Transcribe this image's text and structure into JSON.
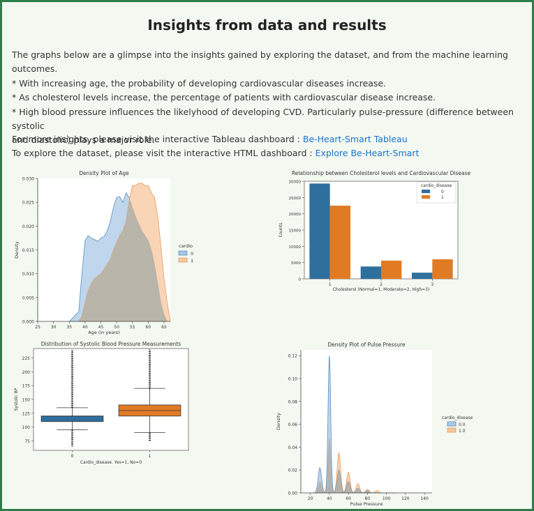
{
  "page": {
    "title": "Insights from data and results",
    "intro": "The graphs below are a glimpse into the insights gained by exploring the dataset, and from the machine learning outcomes.",
    "bullets": [
      "* With increasing age, the probability of developing cardiovascular diseases increase.",
      "* As cholesterol levels increase, the percentage of patients with cardiovascular disease increase.",
      "* High blood pressure influences the likelyhood of developing CVD. Particularly pulse-pressure (difference between systolic",
      "and diastolic) plays a major role."
    ],
    "tableau_prefix": "For more insights, please visit the interactive Tableau dashboard : ",
    "tableau_link": "Be-Heart-Smart Tableau",
    "html_prefix": "To explore the dataset, please visit the interactive HTML dashboard : ",
    "html_link": "Explore Be-Heart-Smart"
  },
  "colors": {
    "blue": "#2f6f9e",
    "orange": "#e07b24",
    "blue_fill": "#a9c8e6",
    "orange_fill": "#f7c79e",
    "overlap": "#b5b2aa",
    "frame": "#2e7d4a"
  },
  "chart_data": [
    {
      "type": "area",
      "title": "Density Plot of Age",
      "xlabel": "Age (in years)",
      "ylabel": "Density",
      "xlim": [
        25,
        67
      ],
      "ylim": [
        0,
        0.03
      ],
      "xticks": [
        25,
        30,
        35,
        40,
        45,
        50,
        55,
        60,
        65
      ],
      "yticks": [
        "0.000",
        "0.005",
        "0.010",
        "0.015",
        "0.020",
        "0.025",
        "0.030"
      ],
      "legend_title": "cardio",
      "legend_position": "right",
      "series": [
        {
          "name": "0",
          "x": [
            35,
            38,
            39,
            40,
            41,
            42,
            43,
            44,
            45,
            46,
            47,
            48,
            49,
            50,
            51,
            52,
            53,
            54,
            55,
            56,
            57,
            58,
            59,
            60,
            61,
            62,
            63,
            64,
            65,
            66
          ],
          "y": [
            0,
            0.002,
            0.01,
            0.017,
            0.018,
            0.0175,
            0.0172,
            0.0168,
            0.0175,
            0.0178,
            0.019,
            0.021,
            0.024,
            0.026,
            0.0262,
            0.025,
            0.027,
            0.026,
            0.024,
            0.022,
            0.0205,
            0.019,
            0.018,
            0.017,
            0.015,
            0.012,
            0.008,
            0.004,
            0.0015,
            0
          ]
        },
        {
          "name": "1",
          "x": [
            38,
            39,
            40,
            41,
            42,
            43,
            44,
            45,
            46,
            47,
            48,
            49,
            50,
            51,
            52,
            53,
            54,
            55,
            56,
            57,
            58,
            59,
            60,
            61,
            62,
            63,
            64,
            65,
            66,
            67
          ],
          "y": [
            0,
            0.001,
            0.004,
            0.0065,
            0.008,
            0.009,
            0.0095,
            0.01,
            0.011,
            0.012,
            0.013,
            0.015,
            0.0165,
            0.018,
            0.019,
            0.021,
            0.0255,
            0.0285,
            0.0285,
            0.029,
            0.029,
            0.0285,
            0.0285,
            0.027,
            0.026,
            0.022,
            0.016,
            0.009,
            0.004,
            0
          ]
        }
      ]
    },
    {
      "type": "bar",
      "title": "Relationship between Cholesterol levels and Cardiovascular Disease",
      "xlabel": "Cholesterol (Normal=1, Moderate=2, High=3)",
      "ylabel": "Counts",
      "categories": [
        "1",
        "2",
        "3"
      ],
      "ylim": [
        0,
        30000
      ],
      "yticks": [
        0,
        5000,
        10000,
        15000,
        20000,
        25000,
        30000
      ],
      "legend_title": "cardio_disease",
      "legend_position": "top-right",
      "series": [
        {
          "name": "0",
          "values": [
            29300,
            3800,
            1900
          ]
        },
        {
          "name": "1",
          "values": [
            22500,
            5600,
            6000
          ]
        }
      ]
    },
    {
      "type": "box",
      "title": "Distribution of Systolic Blood Pressure Measurements",
      "xlabel": "Cardio_disease. Yes=1, No=0",
      "ylabel": "Systolic BP",
      "categories": [
        "0",
        "1"
      ],
      "ylim": [
        58,
        242
      ],
      "yticks": [
        75,
        100,
        125,
        150,
        175,
        200,
        225
      ],
      "boxes": [
        {
          "name": "0",
          "whisker_low": 95,
          "q1": 110,
          "median": 120,
          "q3": 120,
          "whisker_high": 135,
          "outlier_low": 65,
          "outlier_high": 240
        },
        {
          "name": "1",
          "whisker_low": 90,
          "q1": 120,
          "median": 130,
          "q3": 140,
          "whisker_high": 170,
          "outlier_low": 75,
          "outlier_high": 240
        }
      ]
    },
    {
      "type": "area",
      "title": "Density Plot of Pulse Pressure",
      "xlabel": "Pulse Pressure",
      "ylabel": "Density",
      "xlim": [
        10,
        148
      ],
      "ylim": [
        0,
        0.125
      ],
      "xticks": [
        20,
        40,
        60,
        80,
        100,
        120,
        140
      ],
      "yticks": [
        "0.00",
        "0.02",
        "0.04",
        "0.06",
        "0.08",
        "0.10",
        "0.12"
      ],
      "legend_title": "cardio_disease",
      "legend_position": "right",
      "series": [
        {
          "name": "0.0",
          "peaks": [
            [
              30,
              0.022
            ],
            [
              40,
              0.12
            ],
            [
              50,
              0.02
            ],
            [
              60,
              0.01
            ],
            [
              70,
              0.004
            ],
            [
              80,
              0.002
            ]
          ]
        },
        {
          "name": "1.0",
          "peaks": [
            [
              30,
              0.01
            ],
            [
              40,
              0.048
            ],
            [
              50,
              0.035
            ],
            [
              60,
              0.018
            ],
            [
              70,
              0.008
            ],
            [
              80,
              0.003
            ],
            [
              90,
              0.002
            ]
          ]
        }
      ]
    }
  ]
}
